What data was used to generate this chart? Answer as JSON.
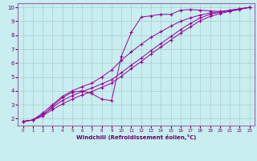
{
  "title": "",
  "xlabel": "Windchill (Refroidissement éolien,°C)",
  "bg_color": "#c8eef0",
  "line_color": "#990099",
  "grid_color": "#aacccc",
  "xlim": [
    -0.5,
    23.5
  ],
  "ylim": [
    1.5,
    10.3
  ],
  "xticks": [
    0,
    1,
    2,
    3,
    4,
    5,
    6,
    7,
    8,
    9,
    10,
    11,
    12,
    13,
    14,
    15,
    16,
    17,
    18,
    19,
    20,
    21,
    22,
    23
  ],
  "yticks": [
    2,
    3,
    4,
    5,
    6,
    7,
    8,
    9,
    10
  ],
  "series1": [
    [
      0,
      1.8
    ],
    [
      1,
      1.9
    ],
    [
      2,
      2.2
    ],
    [
      3,
      2.9
    ],
    [
      4,
      3.5
    ],
    [
      5,
      3.9
    ],
    [
      6,
      4.0
    ],
    [
      7,
      3.8
    ],
    [
      8,
      3.4
    ],
    [
      9,
      3.3
    ],
    [
      10,
      6.5
    ],
    [
      11,
      8.2
    ],
    [
      12,
      9.3
    ],
    [
      13,
      9.4
    ],
    [
      14,
      9.5
    ],
    [
      15,
      9.5
    ],
    [
      16,
      9.8
    ],
    [
      17,
      9.85
    ],
    [
      18,
      9.8
    ],
    [
      19,
      9.75
    ],
    [
      20,
      9.7
    ],
    [
      21,
      9.75
    ],
    [
      22,
      9.9
    ],
    [
      23,
      10.0
    ]
  ],
  "series2": [
    [
      0,
      1.8
    ],
    [
      1,
      1.9
    ],
    [
      2,
      2.4
    ],
    [
      3,
      3.0
    ],
    [
      4,
      3.6
    ],
    [
      5,
      4.0
    ],
    [
      6,
      4.3
    ],
    [
      7,
      4.55
    ],
    [
      8,
      5.0
    ],
    [
      9,
      5.5
    ],
    [
      10,
      6.2
    ],
    [
      11,
      6.8
    ],
    [
      12,
      7.35
    ],
    [
      13,
      7.85
    ],
    [
      14,
      8.25
    ],
    [
      15,
      8.65
    ],
    [
      16,
      9.0
    ],
    [
      17,
      9.25
    ],
    [
      18,
      9.45
    ],
    [
      19,
      9.6
    ],
    [
      20,
      9.7
    ],
    [
      21,
      9.8
    ],
    [
      22,
      9.9
    ],
    [
      23,
      10.0
    ]
  ],
  "series3": [
    [
      0,
      1.8
    ],
    [
      1,
      1.9
    ],
    [
      2,
      2.3
    ],
    [
      3,
      2.8
    ],
    [
      4,
      3.3
    ],
    [
      5,
      3.65
    ],
    [
      6,
      3.95
    ],
    [
      7,
      4.2
    ],
    [
      8,
      4.5
    ],
    [
      9,
      4.8
    ],
    [
      10,
      5.3
    ],
    [
      11,
      5.85
    ],
    [
      12,
      6.35
    ],
    [
      13,
      6.9
    ],
    [
      14,
      7.4
    ],
    [
      15,
      7.9
    ],
    [
      16,
      8.4
    ],
    [
      17,
      8.85
    ],
    [
      18,
      9.25
    ],
    [
      19,
      9.5
    ],
    [
      20,
      9.65
    ],
    [
      21,
      9.78
    ],
    [
      22,
      9.88
    ],
    [
      23,
      10.0
    ]
  ],
  "series4": [
    [
      0,
      1.8
    ],
    [
      1,
      1.9
    ],
    [
      2,
      2.2
    ],
    [
      3,
      2.65
    ],
    [
      4,
      3.05
    ],
    [
      5,
      3.4
    ],
    [
      6,
      3.7
    ],
    [
      7,
      3.95
    ],
    [
      8,
      4.25
    ],
    [
      9,
      4.55
    ],
    [
      10,
      5.05
    ],
    [
      11,
      5.6
    ],
    [
      12,
      6.1
    ],
    [
      13,
      6.65
    ],
    [
      14,
      7.15
    ],
    [
      15,
      7.65
    ],
    [
      16,
      8.15
    ],
    [
      17,
      8.6
    ],
    [
      18,
      9.05
    ],
    [
      19,
      9.35
    ],
    [
      20,
      9.55
    ],
    [
      21,
      9.72
    ],
    [
      22,
      9.85
    ],
    [
      23,
      10.0
    ]
  ]
}
